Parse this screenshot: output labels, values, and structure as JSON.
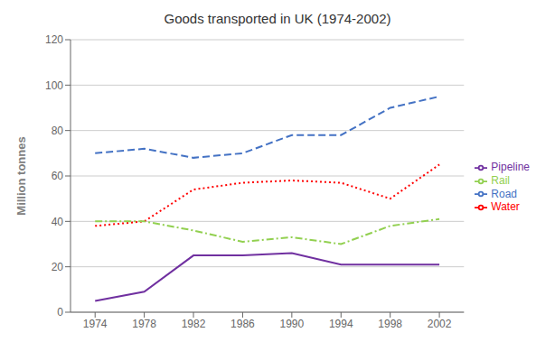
{
  "chart_data": {
    "type": "line",
    "title": "Goods transported in UK (1974-2002)",
    "y_label": "Million tonnes",
    "x": [
      1974,
      1978,
      1982,
      1986,
      1990,
      1994,
      1998,
      2002
    ],
    "series": [
      {
        "name": "Road",
        "color": "#4472C4",
        "line_style": "dashed",
        "values": [
          70,
          72,
          68,
          70,
          78,
          78,
          90,
          95
        ]
      },
      {
        "name": "Water",
        "color": "#FF0000",
        "line_style": "dotted",
        "values": [
          38,
          40,
          54,
          57,
          58,
          57,
          50,
          65
        ]
      },
      {
        "name": "Rail",
        "color": "#92D050",
        "line_style": "dashdot",
        "values": [
          40,
          40,
          36,
          31,
          33,
          30,
          38,
          41
        ]
      },
      {
        "name": "Pipeline",
        "color": "#7030A0",
        "line_style": "solid",
        "values": [
          5,
          9,
          25,
          25,
          26,
          21,
          21,
          21
        ]
      }
    ],
    "xlim": [
      1972,
      2004
    ],
    "xticks": [
      1974,
      1978,
      1982,
      1986,
      1990,
      1994,
      1998,
      2002
    ],
    "ylim": [
      0,
      120
    ],
    "yticks": [
      0,
      20,
      40,
      60,
      80,
      100,
      120
    ],
    "grid": true,
    "legend": "right"
  }
}
